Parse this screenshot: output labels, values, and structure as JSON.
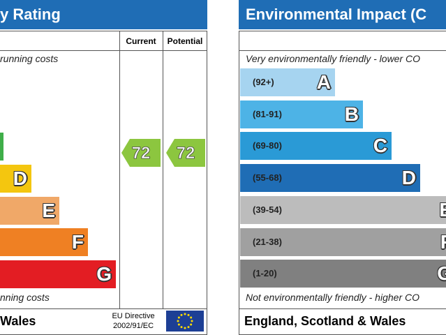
{
  "left": {
    "title": "y Rating",
    "current_header": "Current",
    "potential_header": "Potential",
    "top_note": "running costs",
    "bottom_note": "nning costs",
    "bands": [
      "D",
      "E",
      "F",
      "G"
    ],
    "current": "72",
    "potential": "72",
    "footer": "Wales",
    "directive_line1": "EU Directive",
    "directive_line2": "2002/91/EC"
  },
  "right": {
    "title": "Environmental Impact (C",
    "top_note": "Very environmentally friendly - lower CO",
    "bottom_note": "Not environmentally friendly - higher CO",
    "bands": [
      {
        "range": "(92+)",
        "letter": "A"
      },
      {
        "range": "(81-91)",
        "letter": "B"
      },
      {
        "range": "(69-80)",
        "letter": "C"
      },
      {
        "range": "(55-68)",
        "letter": "D"
      },
      {
        "range": "(39-54)",
        "letter": "E"
      },
      {
        "range": "(21-38)",
        "letter": "F"
      },
      {
        "range": "(1-20)",
        "letter": "G"
      }
    ],
    "footer": "England, Scotland & Wales"
  }
}
